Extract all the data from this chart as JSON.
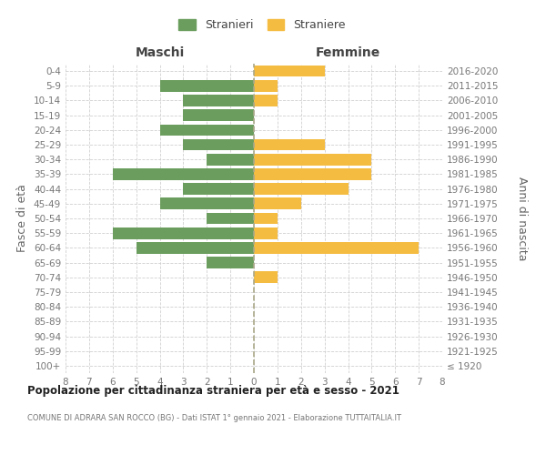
{
  "age_groups": [
    "100+",
    "95-99",
    "90-94",
    "85-89",
    "80-84",
    "75-79",
    "70-74",
    "65-69",
    "60-64",
    "55-59",
    "50-54",
    "45-49",
    "40-44",
    "35-39",
    "30-34",
    "25-29",
    "20-24",
    "15-19",
    "10-14",
    "5-9",
    "0-4"
  ],
  "birth_years": [
    "≤ 1920",
    "1921-1925",
    "1926-1930",
    "1931-1935",
    "1936-1940",
    "1941-1945",
    "1946-1950",
    "1951-1955",
    "1956-1960",
    "1961-1965",
    "1966-1970",
    "1971-1975",
    "1976-1980",
    "1981-1985",
    "1986-1990",
    "1991-1995",
    "1996-2000",
    "2001-2005",
    "2006-2010",
    "2011-2015",
    "2016-2020"
  ],
  "maschi": [
    0,
    0,
    0,
    0,
    0,
    0,
    0,
    2,
    5,
    6,
    2,
    4,
    3,
    6,
    2,
    3,
    4,
    3,
    3,
    4,
    0
  ],
  "femmine": [
    0,
    0,
    0,
    0,
    0,
    0,
    1,
    0,
    7,
    1,
    1,
    2,
    4,
    5,
    5,
    3,
    0,
    0,
    1,
    1,
    3
  ],
  "color_maschi": "#6b9e5e",
  "color_femmine": "#f5bc42",
  "title": "Popolazione per cittadinanza straniera per età e sesso - 2021",
  "subtitle": "COMUNE DI ADRARA SAN ROCCO (BG) - Dati ISTAT 1° gennaio 2021 - Elaborazione TUTTAITALIA.IT",
  "xlabel_left": "Maschi",
  "xlabel_right": "Femmine",
  "ylabel_left": "Fasce di età",
  "ylabel_right": "Anni di nascita",
  "legend_maschi": "Stranieri",
  "legend_femmine": "Straniere",
  "xlim": 8,
  "background_color": "#ffffff",
  "grid_color": "#d0d0d0"
}
